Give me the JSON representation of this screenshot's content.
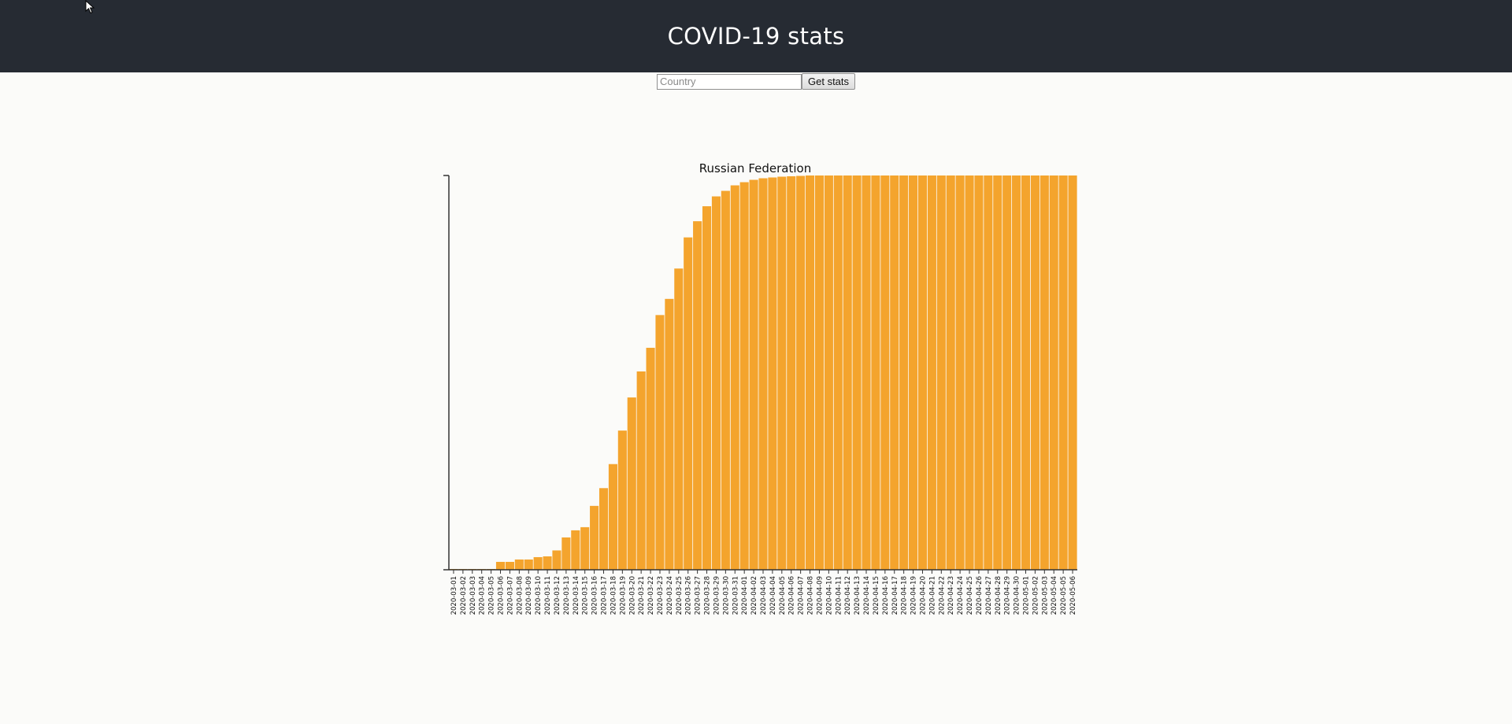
{
  "header": {
    "title": "COVID-19 stats"
  },
  "search": {
    "placeholder": "Country",
    "value": "",
    "button_label": "Get stats"
  },
  "colors": {
    "header_bg": "#262b33",
    "bar": "#f4a42d",
    "bar_edge": "#e8951c",
    "axis": "#333333"
  },
  "chart_data": {
    "type": "bar",
    "title": "Russian Federation",
    "xlabel": "",
    "ylabel": "",
    "ylim": [
      0,
      1
    ],
    "grid": false,
    "categories": [
      "2020-03-01",
      "2020-03-02",
      "2020-03-03",
      "2020-03-04",
      "2020-03-05",
      "2020-03-06",
      "2020-03-07",
      "2020-03-08",
      "2020-03-09",
      "2020-03-10",
      "2020-03-11",
      "2020-03-12",
      "2020-03-13",
      "2020-03-14",
      "2020-03-15",
      "2020-03-16",
      "2020-03-17",
      "2020-03-18",
      "2020-03-19",
      "2020-03-20",
      "2020-03-21",
      "2020-03-22",
      "2020-03-23",
      "2020-03-24",
      "2020-03-25",
      "2020-03-26",
      "2020-03-27",
      "2020-03-28",
      "2020-03-29",
      "2020-03-30",
      "2020-03-31",
      "2020-04-01",
      "2020-04-02",
      "2020-04-03",
      "2020-04-04",
      "2020-04-05",
      "2020-04-06",
      "2020-04-07",
      "2020-04-08",
      "2020-04-09",
      "2020-04-10",
      "2020-04-11",
      "2020-04-12",
      "2020-04-13",
      "2020-04-14",
      "2020-04-15",
      "2020-04-16",
      "2020-04-17",
      "2020-04-18",
      "2020-04-19",
      "2020-04-20",
      "2020-04-21",
      "2020-04-22",
      "2020-04-23",
      "2020-04-24",
      "2020-04-25",
      "2020-04-26",
      "2020-04-27",
      "2020-04-28",
      "2020-04-29",
      "2020-04-30",
      "2020-05-01",
      "2020-05-02",
      "2020-05-03",
      "2020-05-04",
      "2020-05-05",
      "2020-05-06"
    ],
    "values": [
      0.002,
      0.002,
      0.002,
      0.002,
      0.002,
      0.02,
      0.02,
      0.026,
      0.026,
      0.032,
      0.034,
      0.049,
      0.082,
      0.1,
      0.108,
      0.162,
      0.207,
      0.268,
      0.353,
      0.437,
      0.503,
      0.563,
      0.646,
      0.687,
      0.764,
      0.843,
      0.884,
      0.922,
      0.947,
      0.961,
      0.975,
      0.983,
      0.989,
      0.993,
      0.995,
      0.997,
      0.998,
      0.999,
      1.0,
      1,
      1,
      1,
      1,
      1,
      1,
      1,
      1,
      1,
      1,
      1,
      1,
      1,
      1,
      1,
      1,
      1,
      1,
      1,
      1,
      1,
      1,
      1,
      1,
      1,
      1,
      1,
      1
    ]
  }
}
